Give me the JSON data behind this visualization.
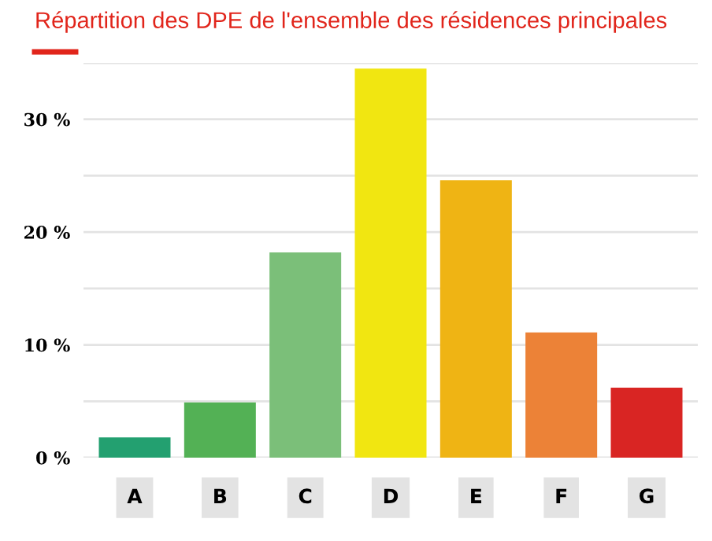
{
  "chart_data": {
    "type": "bar",
    "title": "Répartition des DPE de l'ensemble des résidences principales",
    "categories": [
      "A",
      "B",
      "C",
      "D",
      "E",
      "F",
      "G"
    ],
    "values": [
      1.8,
      4.9,
      18.2,
      34.5,
      24.6,
      11.1,
      6.2
    ],
    "colors": [
      "#23a070",
      "#53b155",
      "#7bbf79",
      "#f1e611",
      "#efb414",
      "#ec8237",
      "#d92523"
    ],
    "ylim": [
      0,
      35
    ],
    "yticks": [
      {
        "value": 0,
        "label": "0 %"
      },
      {
        "value": 5,
        "label": null
      },
      {
        "value": 10,
        "label": "10 %"
      },
      {
        "value": 15,
        "label": null
      },
      {
        "value": 20,
        "label": "20 %"
      },
      {
        "value": 25,
        "label": null
      },
      {
        "value": 30,
        "label": "30 %"
      },
      {
        "value": 35,
        "label": null
      }
    ],
    "grid": "y"
  }
}
